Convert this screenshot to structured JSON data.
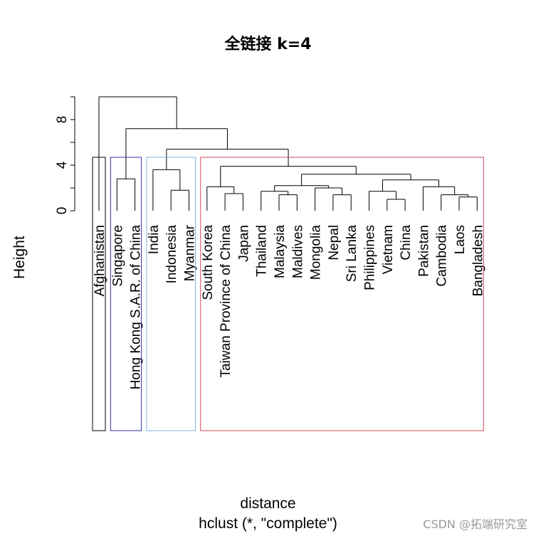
{
  "chart_data": {
    "type": "dendrogram",
    "title": "全链接 k=4",
    "xlabel": "distance",
    "sublabel": "hclust (*, \"complete\")",
    "ylabel": "Height",
    "ylim": [
      0,
      10
    ],
    "yticks": [
      0,
      4,
      8
    ],
    "labels": [
      "Afghanistan",
      "Singapore",
      "Hong Kong S.A.R. of China",
      "India",
      "Indonesia",
      "Myanmar",
      "South Korea",
      "Taiwan Province of China",
      "Japan",
      "Thailand",
      "Malaysia",
      "Maldives",
      "Mongolia",
      "Nepal",
      "Sri Lanka",
      "Philippines",
      "Vietnam",
      "China",
      "Pakistan",
      "Cambodia",
      "Laos",
      "Bangladesh"
    ],
    "merges": [
      {
        "a": 1,
        "b": 2,
        "h": 2.8
      },
      {
        "a": 4,
        "b": 5,
        "h": 1.8
      },
      {
        "a": 3,
        "b": -2,
        "h": 3.6
      },
      {
        "a": 7,
        "b": 8,
        "h": 1.5
      },
      {
        "a": 6,
        "b": -4,
        "h": 2.1
      },
      {
        "a": 10,
        "b": 11,
        "h": 1.4
      },
      {
        "a": 9,
        "b": -6,
        "h": 1.7
      },
      {
        "a": 13,
        "b": 14,
        "h": 1.4
      },
      {
        "a": 12,
        "b": -8,
        "h": 2.0
      },
      {
        "a": -7,
        "b": -9,
        "h": 2.2
      },
      {
        "a": 16,
        "b": 17,
        "h": 1.0
      },
      {
        "a": 15,
        "b": -11,
        "h": 1.7
      },
      {
        "a": 20,
        "b": 21,
        "h": 1.2
      },
      {
        "a": 19,
        "b": -13,
        "h": 1.4
      },
      {
        "a": 18,
        "b": -14,
        "h": 2.1
      },
      {
        "a": -12,
        "b": -15,
        "h": 2.7
      },
      {
        "a": -10,
        "b": -16,
        "h": 3.2
      },
      {
        "a": -5,
        "b": -17,
        "h": 3.9
      },
      {
        "a": -3,
        "b": -18,
        "h": 5.4
      },
      {
        "a": -1,
        "b": -19,
        "h": 7.2
      },
      {
        "a": 0,
        "b": -20,
        "h": 10.0
      }
    ],
    "clusters": [
      {
        "from": 0,
        "to": 0,
        "color": "#000000"
      },
      {
        "from": 1,
        "to": 2,
        "color": "#2f2fb0"
      },
      {
        "from": 3,
        "to": 5,
        "color": "#7fb0e0"
      },
      {
        "from": 6,
        "to": 21,
        "color": "#d1495b"
      }
    ],
    "grid": false,
    "legend": "none"
  },
  "watermark": "CSDN @拓端研究室"
}
